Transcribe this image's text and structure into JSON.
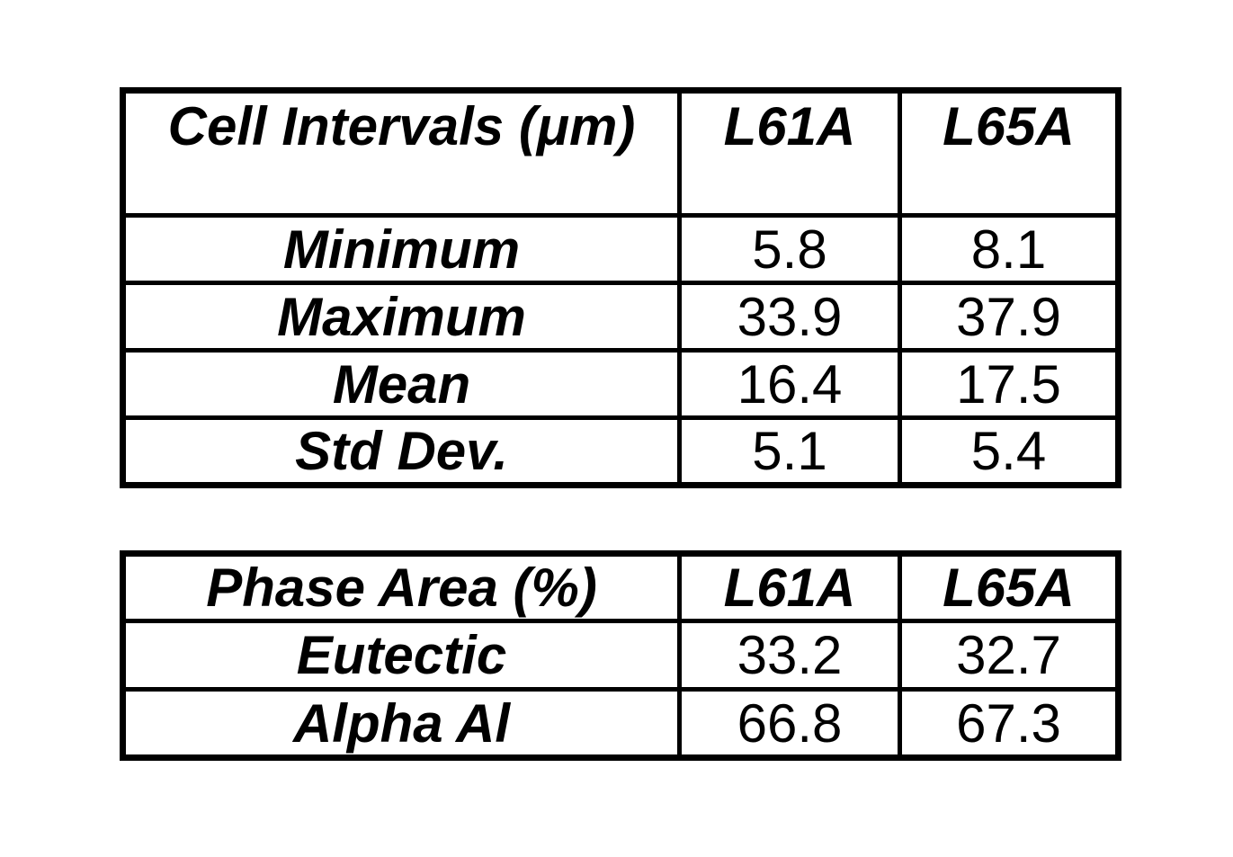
{
  "page": {
    "background_color": "#ffffff",
    "text_color": "#000000",
    "border_color": "#000000"
  },
  "tables": [
    {
      "name": "cell-intervals",
      "header": {
        "c0": "Cell Intervals (μm)",
        "c1": "L61A",
        "c2": "L65A"
      },
      "rows": [
        {
          "label": "Minimum",
          "v1": "5.8",
          "v2": "8.1"
        },
        {
          "label": "Maximum",
          "v1": "33.9",
          "v2": "37.9"
        },
        {
          "label": "Mean",
          "v1": "16.4",
          "v2": "17.5"
        },
        {
          "label": "Std Dev.",
          "v1": "5.1",
          "v2": "5.4"
        }
      ]
    },
    {
      "name": "phase-area",
      "header": {
        "c0": "Phase Area (%)",
        "c1": "L61A",
        "c2": "L65A"
      },
      "rows": [
        {
          "label": "Eutectic",
          "v1": "33.2",
          "v2": "32.7"
        },
        {
          "label": "Alpha Al",
          "v1": "66.8",
          "v2": "67.3"
        }
      ]
    }
  ]
}
